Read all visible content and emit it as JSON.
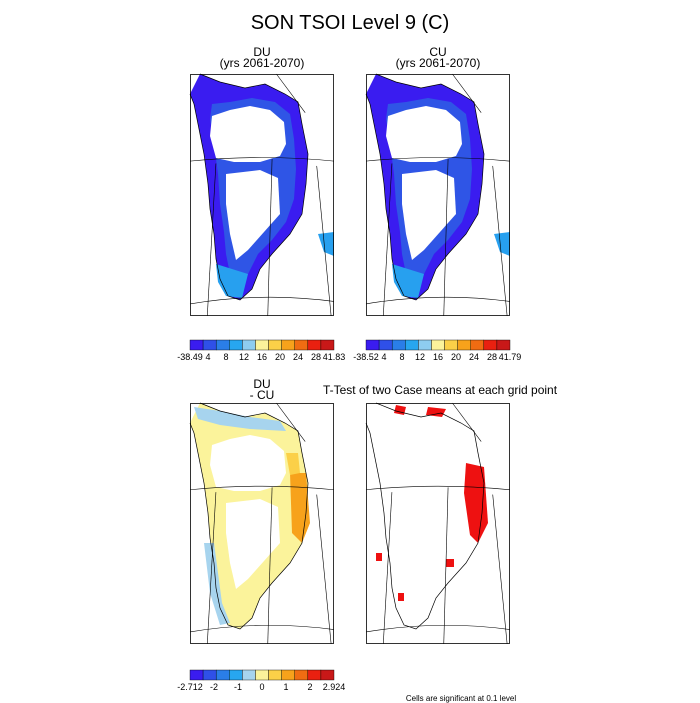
{
  "figure": {
    "title": "SON TSOI Level 9 (C)"
  },
  "panels": {
    "du": {
      "title_line1": "DU",
      "title_line2": "(yrs 2061-2070)"
    },
    "cu": {
      "title_line1": "CU",
      "title_line2": "(yrs 2061-2070)"
    },
    "diff": {
      "title_line1": "DU",
      "title_line2": "- CU"
    },
    "ttest": {
      "title": "T-Test of two Case means at each grid point",
      "note": "Cells are significant at 0.1 level"
    }
  },
  "chart_data": [
    {
      "type": "heatmap",
      "name": "DU",
      "colorbar": {
        "colors": [
          "#3a1cf0",
          "#2f50e8",
          "#2a7ee8",
          "#27a6ef",
          "#8ecdf0",
          "#fbf39b",
          "#fbd048",
          "#f7a21b",
          "#f06c12",
          "#e92010",
          "#c81818"
        ],
        "tick_labels": [
          "-38.49",
          "4",
          "8",
          "12",
          "16",
          "20",
          "24",
          "28",
          "41.83"
        ],
        "min_label": "-38.49",
        "max_label": "41.83"
      }
    },
    {
      "type": "heatmap",
      "name": "CU",
      "colorbar": {
        "colors": [
          "#3a1cf0",
          "#2f50e8",
          "#2a7ee8",
          "#27a6ef",
          "#8ecdf0",
          "#fbf39b",
          "#fbd048",
          "#f7a21b",
          "#f06c12",
          "#e92010",
          "#c81818"
        ],
        "tick_labels": [
          "-38.52",
          "4",
          "8",
          "12",
          "16",
          "20",
          "24",
          "28",
          "41.79"
        ],
        "min_label": "-38.52",
        "max_label": "41.79"
      }
    },
    {
      "type": "heatmap",
      "name": "DU - CU",
      "colorbar": {
        "colors": [
          "#3a1cf0",
          "#2f50e8",
          "#2a7ee8",
          "#27a6ef",
          "#a7d4ee",
          "#fbf39b",
          "#fbd048",
          "#f7a21b",
          "#f06c12",
          "#e92010",
          "#c81818"
        ],
        "tick_labels": [
          "-2.712",
          "-2",
          "-1",
          "0",
          "1",
          "2",
          "2.924"
        ],
        "min_label": "-2.712",
        "max_label": "2.924"
      }
    }
  ],
  "colors": {
    "du_coast": "#3a1cf0",
    "du_inner": "#2f55e6",
    "du_south": "#27a0ef",
    "diff_yellow": "#fbf39b",
    "diff_light": "#a7d4ee",
    "diff_orange": "#f7a21b",
    "diff_gold": "#fbd048",
    "sig_red": "#ee1111"
  }
}
